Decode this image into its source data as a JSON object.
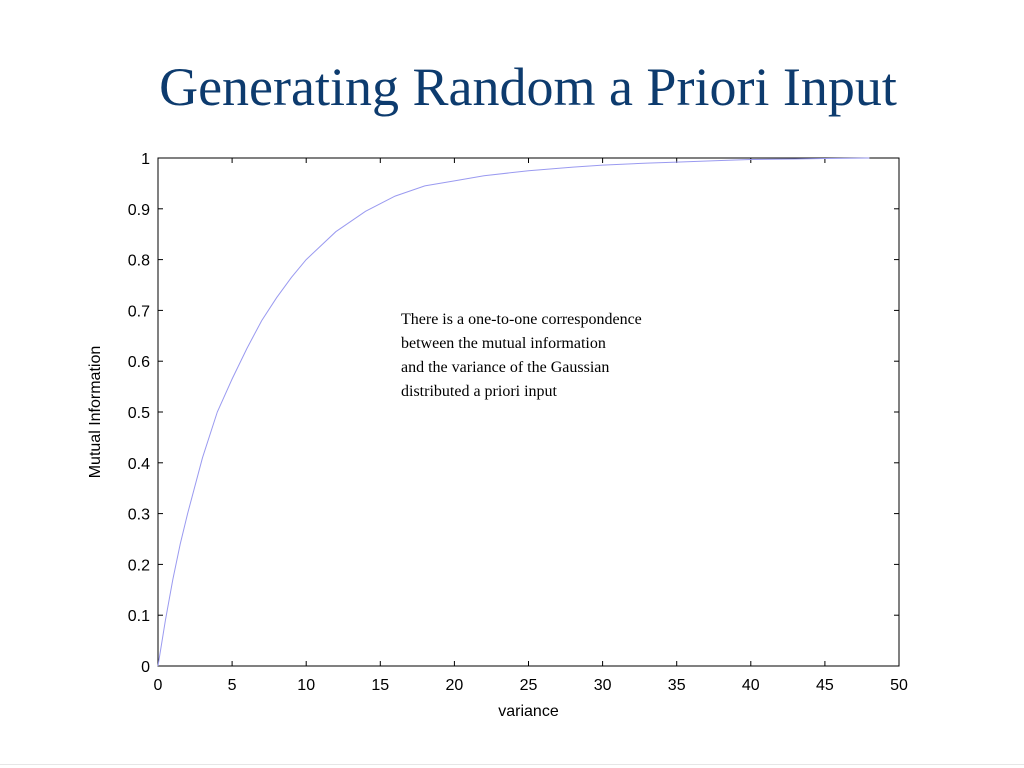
{
  "slide": {
    "title": "Generating Random a Priori Input"
  },
  "chart_data": {
    "type": "line",
    "title": "",
    "xlabel": "variance",
    "ylabel": "Mutual Information",
    "xlim": [
      0,
      50
    ],
    "ylim": [
      0,
      1
    ],
    "xticks": [
      "0",
      "5",
      "10",
      "15",
      "20",
      "25",
      "30",
      "35",
      "40",
      "45",
      "50"
    ],
    "yticks": [
      "0",
      "0.1",
      "0.2",
      "0.3",
      "0.4",
      "0.5",
      "0.6",
      "0.7",
      "0.8",
      "0.9",
      "1"
    ],
    "grid": false,
    "series": [
      {
        "color": "#9a9af0",
        "x": [
          0,
          0.5,
          1,
          1.5,
          2,
          3,
          4,
          5,
          6,
          7,
          8,
          9,
          10,
          12,
          14,
          16,
          18,
          20,
          22,
          25,
          28,
          30,
          33,
          35,
          38,
          40,
          43,
          45,
          48
        ],
        "y": [
          0,
          0.09,
          0.17,
          0.24,
          0.3,
          0.41,
          0.5,
          0.565,
          0.625,
          0.68,
          0.725,
          0.765,
          0.8,
          0.855,
          0.895,
          0.925,
          0.945,
          0.955,
          0.965,
          0.975,
          0.982,
          0.986,
          0.99,
          0.992,
          0.995,
          0.997,
          0.998,
          0.999,
          1.0
        ]
      }
    ],
    "annotation": [
      "There is a one-to-one correspondence",
      "between the mutual information",
      "and the variance of the Gaussian",
      "distributed a priori input"
    ]
  }
}
